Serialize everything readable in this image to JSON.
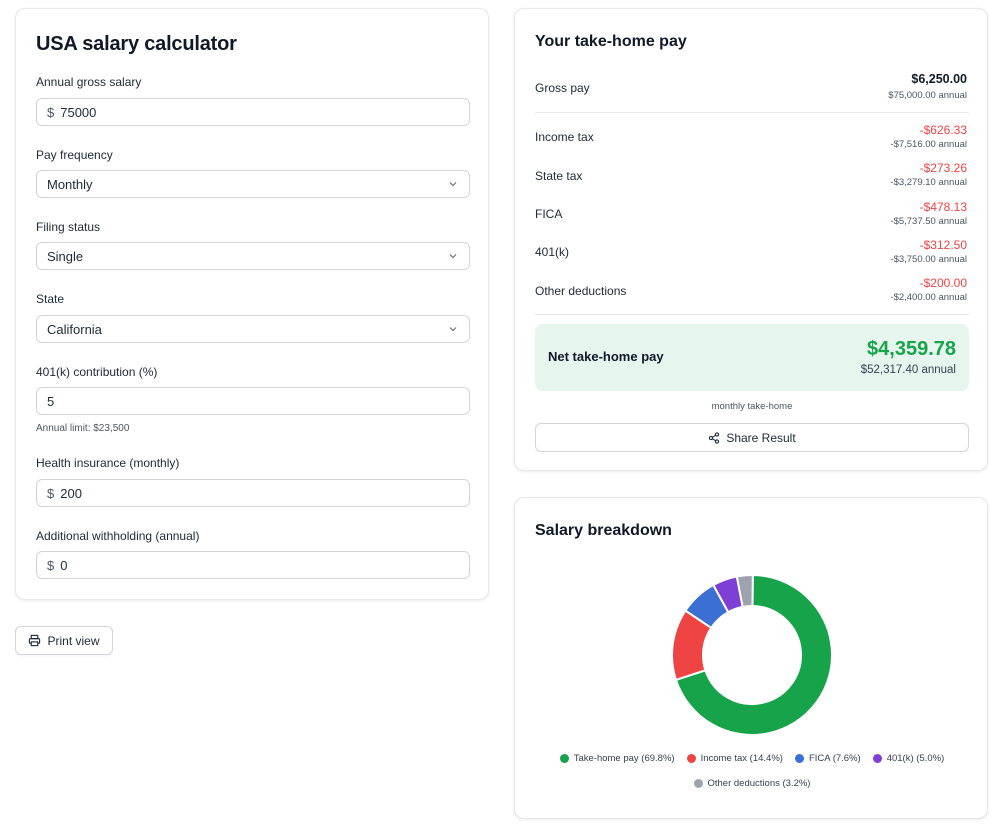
{
  "form": {
    "title": "USA salary calculator",
    "annual_gross": {
      "label": "Annual gross salary",
      "prefix": "$",
      "value": "75000"
    },
    "pay_frequency": {
      "label": "Pay frequency",
      "value": "Monthly"
    },
    "filing_status": {
      "label": "Filing status",
      "value": "Single"
    },
    "state": {
      "label": "State",
      "value": "California"
    },
    "contribution_401k": {
      "label": "401(k) contribution (%)",
      "value": "5",
      "hint": "Annual limit: $23,500"
    },
    "health_insurance": {
      "label": "Health insurance (monthly)",
      "prefix": "$",
      "value": "200"
    },
    "additional_withholding": {
      "label": "Additional withholding (annual)",
      "prefix": "$",
      "value": "0"
    }
  },
  "print_button": {
    "label": "Print view",
    "icon": "printer-icon"
  },
  "take_home": {
    "title": "Your take-home pay",
    "gross": {
      "label": "Gross pay",
      "amount": "$6,250.00",
      "annual": "$75,000.00 annual"
    },
    "deductions": [
      {
        "label": "Income tax",
        "amount": "-$626.33",
        "annual": "-$7,516.00 annual"
      },
      {
        "label": "State tax",
        "amount": "-$273.26",
        "annual": "-$3,279.10 annual"
      },
      {
        "label": "FICA",
        "amount": "-$478.13",
        "annual": "-$5,737.50 annual"
      },
      {
        "label": "401(k)",
        "amount": "-$312.50",
        "annual": "-$3,750.00 annual"
      },
      {
        "label": "Other deductions",
        "amount": "-$200.00",
        "annual": "-$2,400.00 annual"
      }
    ],
    "net": {
      "label": "Net take-home pay",
      "amount": "$4,359.78",
      "annual": "$52,317.40 annual"
    },
    "caption": "monthly take-home",
    "share_label": "Share Result",
    "share_icon": "share-icon",
    "colors": {
      "negative": "#ef4444",
      "net": "#16a34a",
      "net_bg": "#e6f6ef"
    }
  },
  "breakdown": {
    "title": "Salary breakdown",
    "chart_data": {
      "type": "pie",
      "donut": true,
      "title": "",
      "series": [
        {
          "name": "Take-home pay",
          "value": 69.8,
          "color": "#16a34a",
          "legend": "Take-home pay (69.8%)"
        },
        {
          "name": "Income tax",
          "value": 14.4,
          "color": "#ef4444",
          "legend": "Income tax (14.4%)"
        },
        {
          "name": "FICA",
          "value": 7.6,
          "color": "#3b6fd4",
          "legend": "FICA (7.6%)"
        },
        {
          "name": "401(k)",
          "value": 5.0,
          "color": "#7e3fd6",
          "legend": "401(k) (5.0%)"
        },
        {
          "name": "Other deductions",
          "value": 3.2,
          "color": "#9ca3af",
          "legend": "Other deductions (3.2%)"
        }
      ],
      "legend_position": "bottom"
    }
  }
}
